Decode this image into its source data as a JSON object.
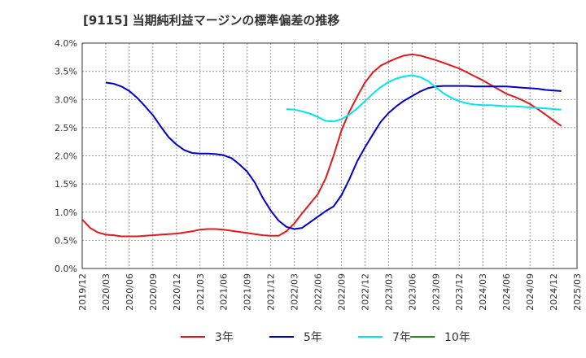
{
  "title": "[9115]  当期純利益マージンの標準偏差の推移",
  "chart_data": {
    "type": "line",
    "ylim": [
      0,
      4.0
    ],
    "y_ticks": [
      "0.0%",
      "0.5%",
      "1.0%",
      "1.5%",
      "2.0%",
      "2.5%",
      "3.0%",
      "3.5%",
      "4.0%"
    ],
    "x_ticks": [
      "2019/12",
      "2020/03",
      "2020/06",
      "2020/09",
      "2020/12",
      "2021/03",
      "2021/06",
      "2021/09",
      "2021/12",
      "2022/03",
      "2022/06",
      "2022/09",
      "2022/12",
      "2023/03",
      "2023/06",
      "2023/09",
      "2023/12",
      "2024/03",
      "2024/06",
      "2024/09",
      "2024/12",
      "2025/03"
    ],
    "grid": true,
    "legend_position": "bottom",
    "series": [
      {
        "name": "3年",
        "color": "#e31a1c",
        "values": [
          [
            "2019/12",
            0.87
          ],
          [
            "2020/01",
            0.72
          ],
          [
            "2020/02",
            0.64
          ],
          [
            "2020/03",
            0.6
          ],
          [
            "2020/04",
            0.59
          ],
          [
            "2020/05",
            0.57
          ],
          [
            "2020/06",
            0.57
          ],
          [
            "2020/07",
            0.57
          ],
          [
            "2020/08",
            0.58
          ],
          [
            "2020/09",
            0.59
          ],
          [
            "2020/10",
            0.6
          ],
          [
            "2020/11",
            0.61
          ],
          [
            "2020/12",
            0.62
          ],
          [
            "2021/01",
            0.64
          ],
          [
            "2021/02",
            0.66
          ],
          [
            "2021/03",
            0.69
          ],
          [
            "2021/04",
            0.7
          ],
          [
            "2021/05",
            0.7
          ],
          [
            "2021/06",
            0.69
          ],
          [
            "2021/07",
            0.67
          ],
          [
            "2021/08",
            0.65
          ],
          [
            "2021/09",
            0.63
          ],
          [
            "2021/10",
            0.61
          ],
          [
            "2021/11",
            0.59
          ],
          [
            "2021/12",
            0.58
          ],
          [
            "2022/01",
            0.58
          ],
          [
            "2022/02",
            0.66
          ],
          [
            "2022/03",
            0.8
          ],
          [
            "2022/04",
            0.98
          ],
          [
            "2022/05",
            1.15
          ],
          [
            "2022/06",
            1.32
          ],
          [
            "2022/07",
            1.6
          ],
          [
            "2022/08",
            2.0
          ],
          [
            "2022/09",
            2.45
          ],
          [
            "2022/10",
            2.78
          ],
          [
            "2022/11",
            3.05
          ],
          [
            "2022/12",
            3.3
          ],
          [
            "2023/01",
            3.48
          ],
          [
            "2023/02",
            3.6
          ],
          [
            "2023/03",
            3.67
          ],
          [
            "2023/04",
            3.73
          ],
          [
            "2023/05",
            3.78
          ],
          [
            "2023/06",
            3.8
          ],
          [
            "2023/07",
            3.78
          ],
          [
            "2023/08",
            3.74
          ],
          [
            "2023/09",
            3.7
          ],
          [
            "2023/10",
            3.65
          ],
          [
            "2023/11",
            3.6
          ],
          [
            "2023/12",
            3.55
          ],
          [
            "2024/01",
            3.48
          ],
          [
            "2024/02",
            3.41
          ],
          [
            "2024/03",
            3.34
          ],
          [
            "2024/04",
            3.26
          ],
          [
            "2024/05",
            3.18
          ],
          [
            "2024/06",
            3.1
          ],
          [
            "2024/07",
            3.05
          ],
          [
            "2024/08",
            2.99
          ],
          [
            "2024/09",
            2.92
          ],
          [
            "2024/10",
            2.83
          ],
          [
            "2024/11",
            2.73
          ],
          [
            "2024/12",
            2.63
          ],
          [
            "2025/01",
            2.53
          ]
        ]
      },
      {
        "name": "5年",
        "color": "#0000cc",
        "values": [
          [
            "2020/03",
            3.3
          ],
          [
            "2020/04",
            3.28
          ],
          [
            "2020/05",
            3.23
          ],
          [
            "2020/06",
            3.15
          ],
          [
            "2020/07",
            3.03
          ],
          [
            "2020/08",
            2.88
          ],
          [
            "2020/09",
            2.72
          ],
          [
            "2020/10",
            2.52
          ],
          [
            "2020/11",
            2.33
          ],
          [
            "2020/12",
            2.2
          ],
          [
            "2021/01",
            2.1
          ],
          [
            "2021/02",
            2.05
          ],
          [
            "2021/03",
            2.04
          ],
          [
            "2021/04",
            2.04
          ],
          [
            "2021/05",
            2.03
          ],
          [
            "2021/06",
            2.01
          ],
          [
            "2021/07",
            1.96
          ],
          [
            "2021/08",
            1.85
          ],
          [
            "2021/09",
            1.72
          ],
          [
            "2021/10",
            1.52
          ],
          [
            "2021/11",
            1.25
          ],
          [
            "2021/12",
            1.03
          ],
          [
            "2022/01",
            0.85
          ],
          [
            "2022/02",
            0.74
          ],
          [
            "2022/03",
            0.7
          ],
          [
            "2022/04",
            0.72
          ],
          [
            "2022/05",
            0.82
          ],
          [
            "2022/06",
            0.92
          ],
          [
            "2022/07",
            1.02
          ],
          [
            "2022/08",
            1.1
          ],
          [
            "2022/09",
            1.3
          ],
          [
            "2022/10",
            1.58
          ],
          [
            "2022/11",
            1.9
          ],
          [
            "2022/12",
            2.15
          ],
          [
            "2023/01",
            2.38
          ],
          [
            "2023/02",
            2.6
          ],
          [
            "2023/03",
            2.76
          ],
          [
            "2023/04",
            2.88
          ],
          [
            "2023/05",
            2.98
          ],
          [
            "2023/06",
            3.06
          ],
          [
            "2023/07",
            3.14
          ],
          [
            "2023/08",
            3.2
          ],
          [
            "2023/09",
            3.23
          ],
          [
            "2023/10",
            3.24
          ],
          [
            "2023/11",
            3.24
          ],
          [
            "2023/12",
            3.24
          ],
          [
            "2024/01",
            3.24
          ],
          [
            "2024/02",
            3.23
          ],
          [
            "2024/03",
            3.23
          ],
          [
            "2024/04",
            3.23
          ],
          [
            "2024/05",
            3.23
          ],
          [
            "2024/06",
            3.23
          ],
          [
            "2024/07",
            3.22
          ],
          [
            "2024/08",
            3.21
          ],
          [
            "2024/09",
            3.2
          ],
          [
            "2024/10",
            3.19
          ],
          [
            "2024/11",
            3.17
          ],
          [
            "2024/12",
            3.16
          ],
          [
            "2025/01",
            3.15
          ]
        ]
      },
      {
        "name": "7年",
        "color": "#00e5ee",
        "values": [
          [
            "2022/02",
            2.83
          ],
          [
            "2022/03",
            2.82
          ],
          [
            "2022/04",
            2.79
          ],
          [
            "2022/05",
            2.75
          ],
          [
            "2022/06",
            2.69
          ],
          [
            "2022/07",
            2.62
          ],
          [
            "2022/08",
            2.61
          ],
          [
            "2022/09",
            2.65
          ],
          [
            "2022/10",
            2.73
          ],
          [
            "2022/11",
            2.84
          ],
          [
            "2022/12",
            2.97
          ],
          [
            "2023/01",
            3.1
          ],
          [
            "2023/02",
            3.22
          ],
          [
            "2023/03",
            3.31
          ],
          [
            "2023/04",
            3.37
          ],
          [
            "2023/05",
            3.41
          ],
          [
            "2023/06",
            3.43
          ],
          [
            "2023/07",
            3.4
          ],
          [
            "2023/08",
            3.33
          ],
          [
            "2023/09",
            3.22
          ],
          [
            "2023/10",
            3.11
          ],
          [
            "2023/11",
            3.03
          ],
          [
            "2023/12",
            2.97
          ],
          [
            "2024/01",
            2.93
          ],
          [
            "2024/02",
            2.91
          ],
          [
            "2024/03",
            2.9
          ],
          [
            "2024/04",
            2.9
          ],
          [
            "2024/05",
            2.89
          ],
          [
            "2024/06",
            2.88
          ],
          [
            "2024/07",
            2.88
          ],
          [
            "2024/08",
            2.87
          ],
          [
            "2024/09",
            2.86
          ],
          [
            "2024/10",
            2.85
          ],
          [
            "2024/11",
            2.84
          ],
          [
            "2024/12",
            2.83
          ],
          [
            "2025/01",
            2.82
          ]
        ]
      },
      {
        "name": "10年",
        "color": "#228b22",
        "values": []
      }
    ]
  }
}
